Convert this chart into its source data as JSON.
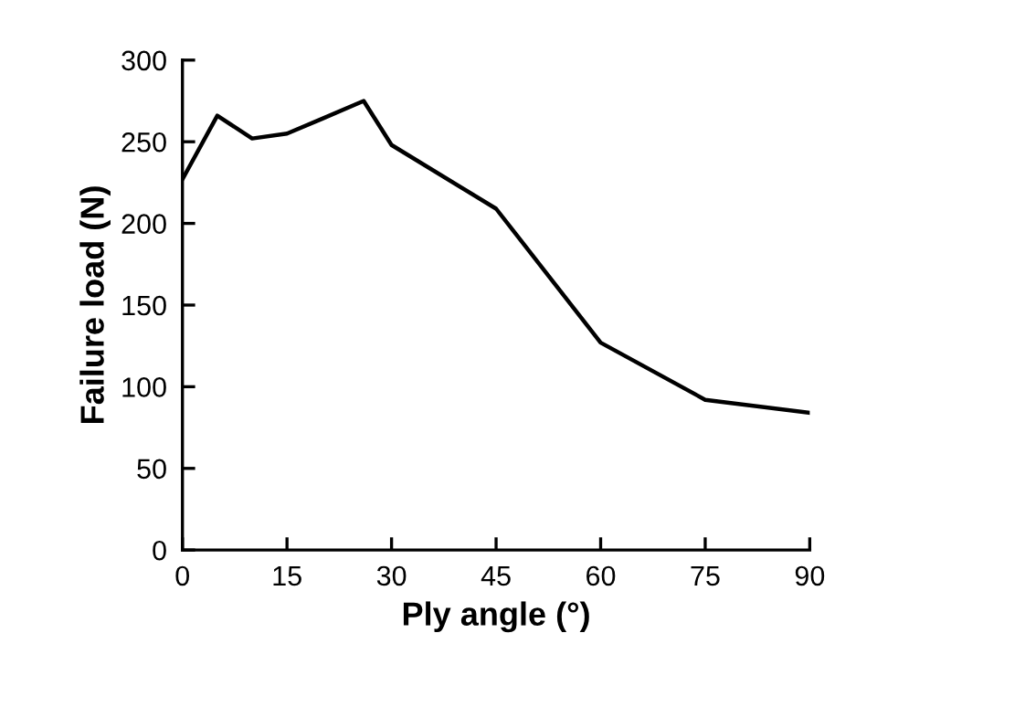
{
  "chart_data": {
    "type": "line",
    "xlabel": "Ply angle (°)",
    "ylabel": "Failure load (N)",
    "x": [
      0,
      5,
      10,
      15,
      20,
      26,
      30,
      45,
      60,
      75,
      90
    ],
    "series": [
      {
        "color": "#000000",
        "values": [
          227,
          266,
          252,
          255,
          264,
          275,
          248,
          209,
          127,
          92,
          84
        ]
      }
    ],
    "xlim": [
      0,
      90
    ],
    "xticks": [
      0,
      15,
      30,
      45,
      60,
      75,
      90
    ],
    "ylim": [
      0,
      300
    ],
    "yticks": [
      0,
      50,
      100,
      150,
      200,
      250,
      300
    ],
    "grid": false,
    "legend": false,
    "marker": "none",
    "line_style": "solid"
  }
}
